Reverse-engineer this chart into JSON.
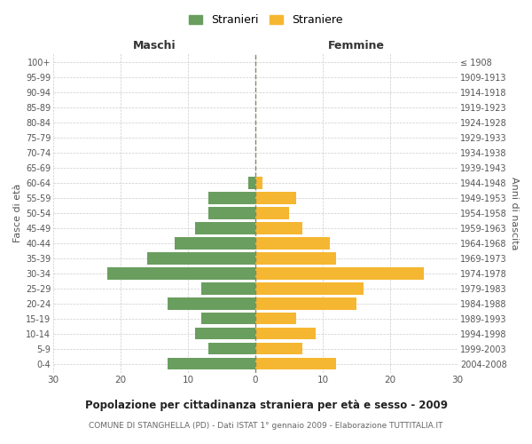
{
  "age_groups": [
    "0-4",
    "5-9",
    "10-14",
    "15-19",
    "20-24",
    "25-29",
    "30-34",
    "35-39",
    "40-44",
    "45-49",
    "50-54",
    "55-59",
    "60-64",
    "65-69",
    "70-74",
    "75-79",
    "80-84",
    "85-89",
    "90-94",
    "95-99",
    "100+"
  ],
  "birth_years": [
    "2004-2008",
    "1999-2003",
    "1994-1998",
    "1989-1993",
    "1984-1988",
    "1979-1983",
    "1974-1978",
    "1969-1973",
    "1964-1968",
    "1959-1963",
    "1954-1958",
    "1949-1953",
    "1944-1948",
    "1939-1943",
    "1934-1938",
    "1929-1933",
    "1924-1928",
    "1919-1923",
    "1914-1918",
    "1909-1913",
    "≤ 1908"
  ],
  "males": [
    13,
    7,
    9,
    8,
    13,
    8,
    22,
    16,
    12,
    9,
    7,
    7,
    1,
    0,
    0,
    0,
    0,
    0,
    0,
    0,
    0
  ],
  "females": [
    12,
    7,
    9,
    6,
    15,
    16,
    25,
    12,
    11,
    7,
    5,
    6,
    1,
    0,
    0,
    0,
    0,
    0,
    0,
    0,
    0
  ],
  "male_color": "#6a9e5f",
  "female_color": "#f5b731",
  "background_color": "#ffffff",
  "grid_color": "#cccccc",
  "title": "Popolazione per cittadinanza straniera per età e sesso - 2009",
  "subtitle": "COMUNE DI STANGHELLA (PD) - Dati ISTAT 1° gennaio 2009 - Elaborazione TUTTITALIA.IT",
  "xlabel_left": "Maschi",
  "xlabel_right": "Femmine",
  "ylabel_left": "Fasce di età",
  "ylabel_right": "Anni di nascita",
  "legend_male": "Stranieri",
  "legend_female": "Straniere",
  "xlim": 30
}
